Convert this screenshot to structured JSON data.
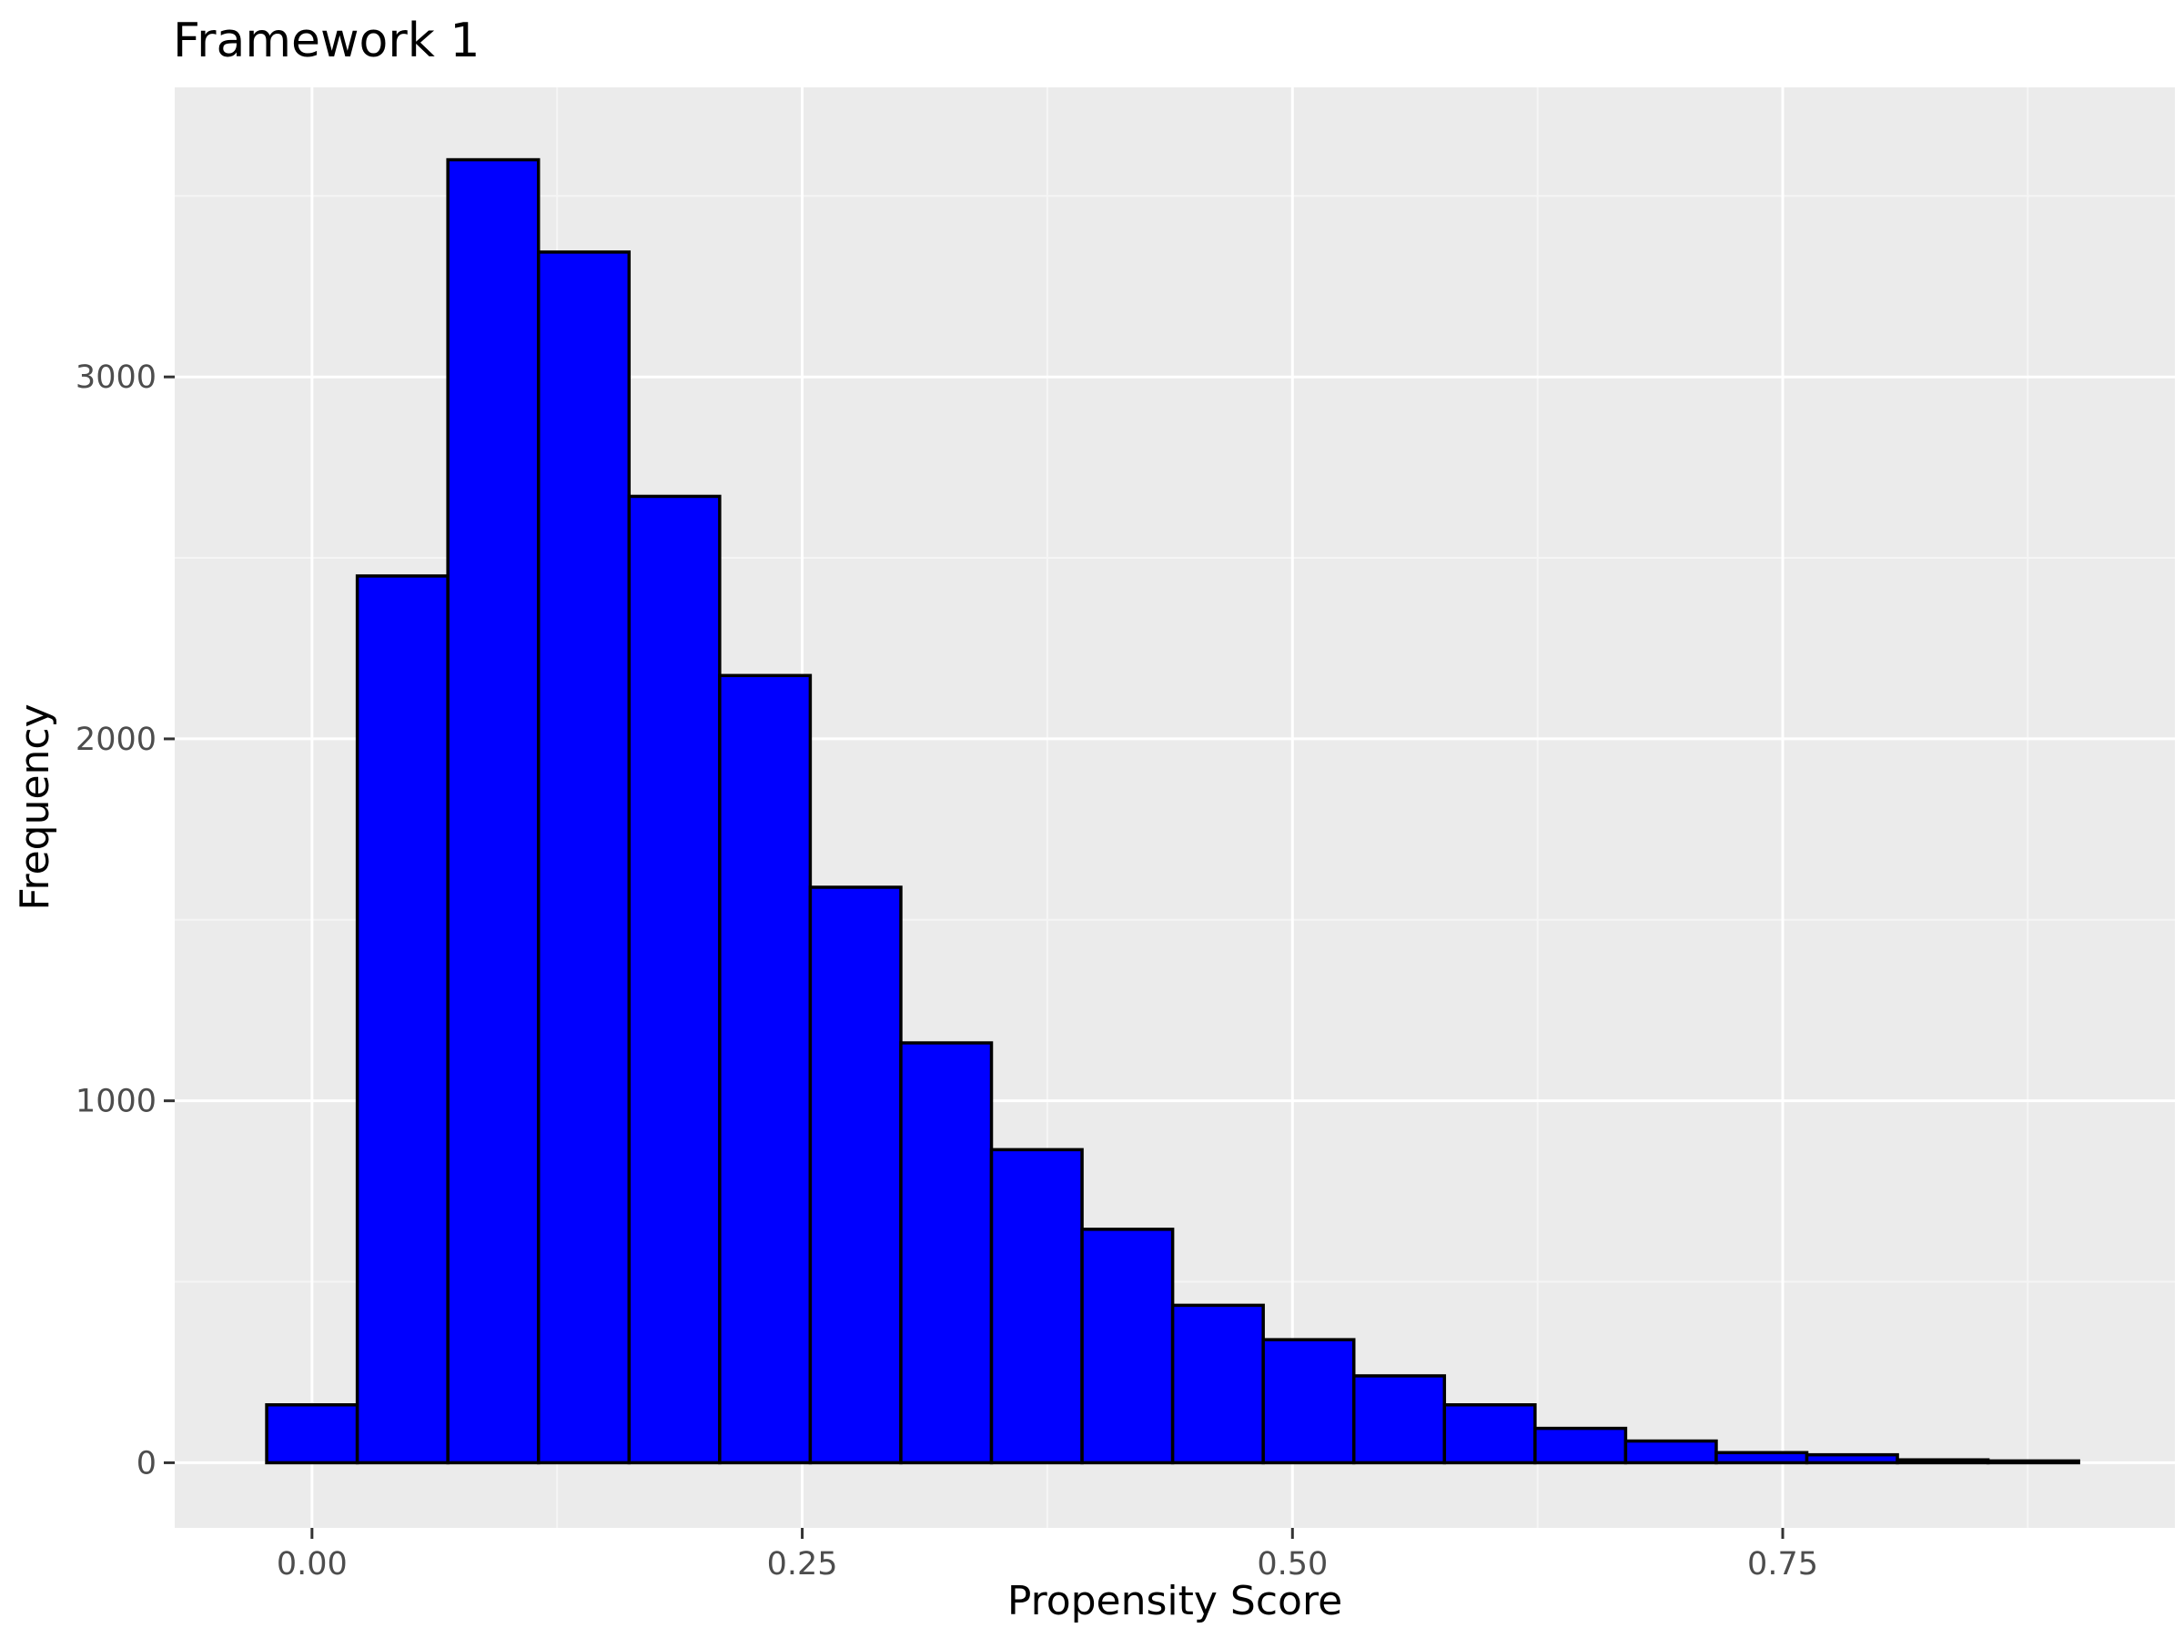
{
  "chart_data": {
    "type": "bar",
    "subtype": "histogram",
    "title": "Framework 1",
    "xlabel": "Propensity Score",
    "ylabel": "Frequency",
    "xlim": [
      -0.07,
      0.95
    ],
    "ylim": [
      -180,
      3800
    ],
    "x_ticks": [
      {
        "value": 0.0,
        "label": "0.00"
      },
      {
        "value": 0.25,
        "label": "0.25"
      },
      {
        "value": 0.5,
        "label": "0.50"
      },
      {
        "value": 0.75,
        "label": "0.75"
      }
    ],
    "y_ticks": [
      {
        "value": 0,
        "label": "0"
      },
      {
        "value": 1000,
        "label": "1000"
      },
      {
        "value": 2000,
        "label": "2000"
      },
      {
        "value": 3000,
        "label": "3000"
      }
    ],
    "bin_width": 0.0462,
    "bin_centers": [
      0.0,
      0.0462,
      0.0924,
      0.1386,
      0.1848,
      0.231,
      0.2772,
      0.3234,
      0.3696,
      0.4158,
      0.462,
      0.5082,
      0.5544,
      0.6006,
      0.6468,
      0.693,
      0.7392,
      0.7854,
      0.8316,
      0.8778
    ],
    "values": [
      160,
      2450,
      3600,
      3345,
      2670,
      2175,
      1590,
      1160,
      865,
      645,
      435,
      340,
      240,
      160,
      95,
      60,
      28,
      22,
      8,
      5
    ],
    "grid": true,
    "colors": {
      "panel_background": "#ebebeb",
      "grid_major": "#ffffff",
      "grid_minor": "#f5f5f5",
      "bar_fill": "#0000ff",
      "bar_outline": "#000000",
      "tick_mark": "#333333"
    }
  }
}
